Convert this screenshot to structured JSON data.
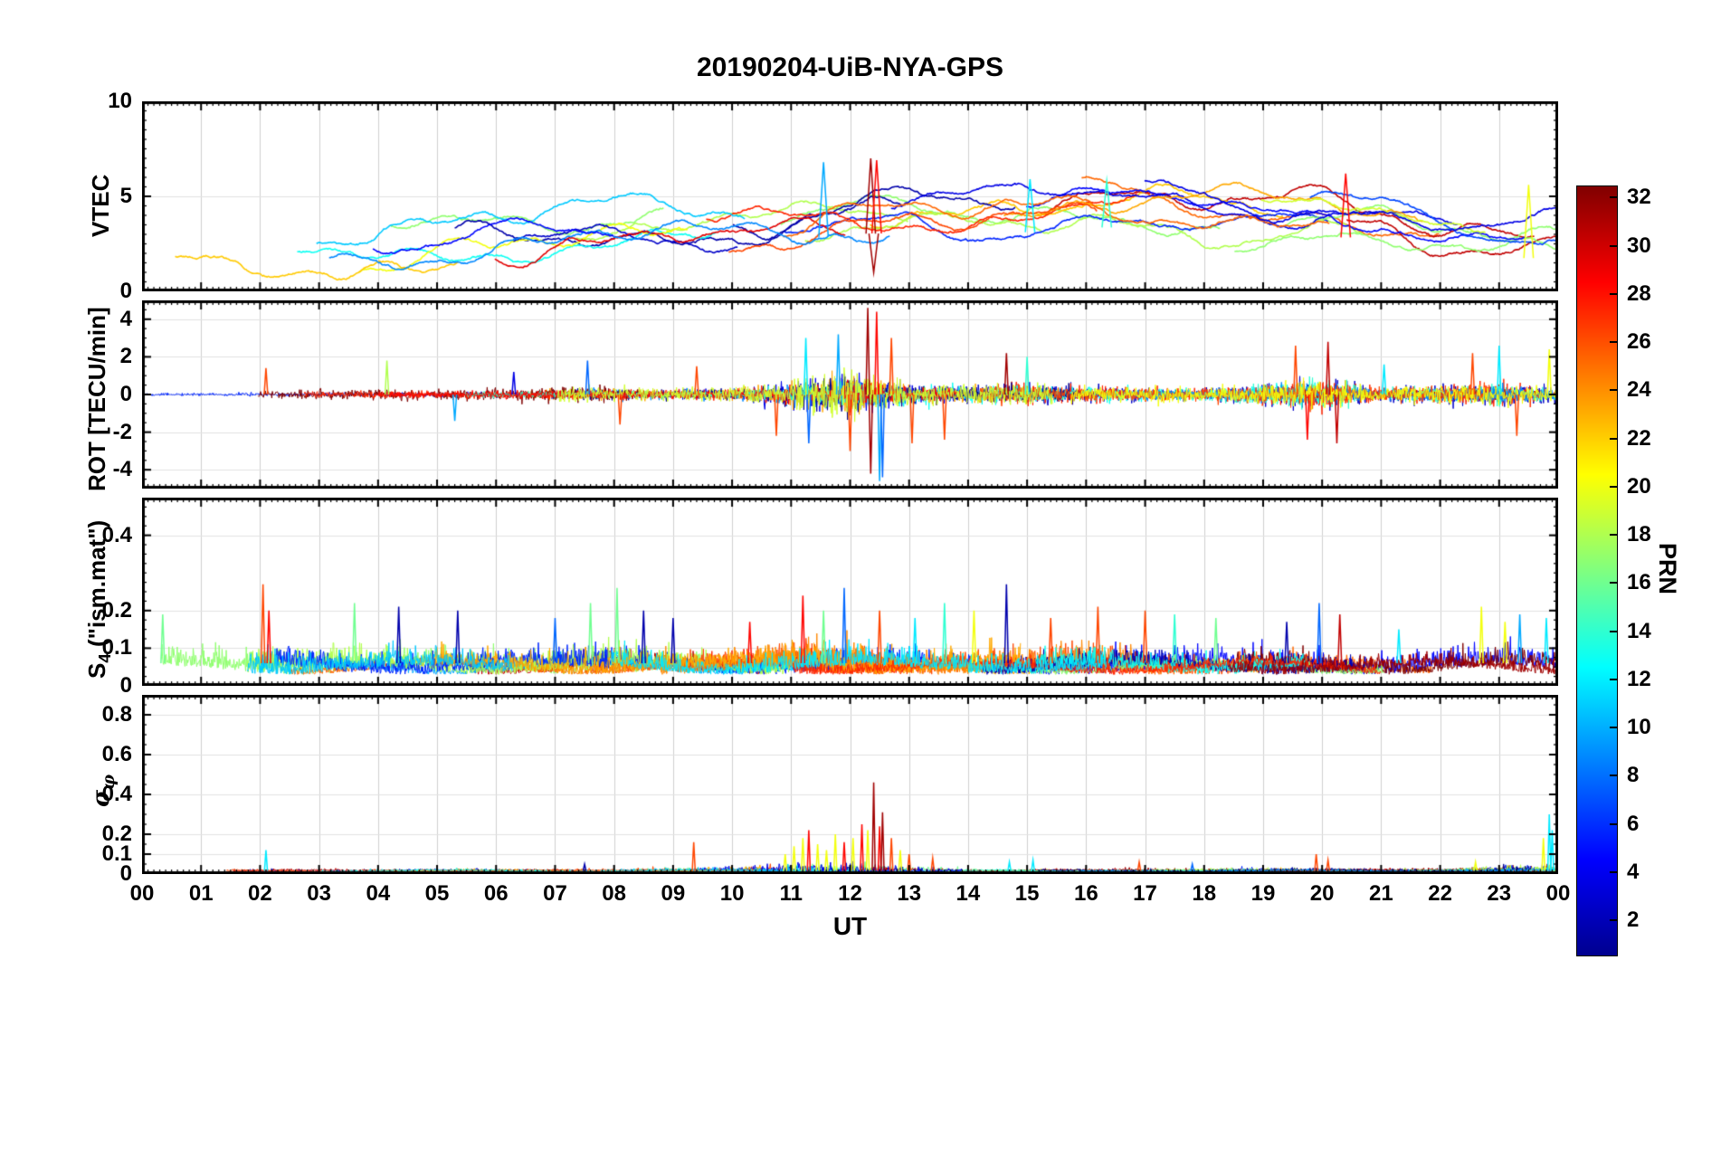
{
  "title": "20190204-UiB-NYA-GPS",
  "xlabel": "UT",
  "x_ticks": [
    "00",
    "01",
    "02",
    "03",
    "04",
    "05",
    "06",
    "07",
    "08",
    "09",
    "10",
    "11",
    "12",
    "13",
    "14",
    "15",
    "16",
    "17",
    "18",
    "19",
    "20",
    "21",
    "22",
    "23",
    "00"
  ],
  "colorbar": {
    "label": "PRN",
    "min": 1,
    "max": 32,
    "ticks": [
      2,
      4,
      6,
      8,
      10,
      12,
      14,
      16,
      18,
      20,
      22,
      24,
      26,
      28,
      30,
      32
    ],
    "colormap": "jet",
    "jet_stops": [
      [
        0,
        "#00008F"
      ],
      [
        0.125,
        "#0000FF"
      ],
      [
        0.375,
        "#00FFFF"
      ],
      [
        0.625,
        "#FFFF00"
      ],
      [
        0.875,
        "#FF0000"
      ],
      [
        1,
        "#800000"
      ]
    ]
  },
  "chart_data": {
    "type": "line",
    "x_range_hours": [
      0,
      24
    ],
    "x_axis_label": "UT",
    "grid": true,
    "legend": "colorbar PRN 1-32 (jet colormap)",
    "panels": [
      {
        "name": "VTEC",
        "kind": "smooth",
        "ylabel": "VTEC",
        "ylim": [
          0,
          10
        ],
        "yticks": [
          0,
          5,
          10
        ],
        "minor_tick": 0.5,
        "seed": 11,
        "n_series": 30,
        "spread": 1.0,
        "mean_envelope": [
          2.2,
          2.1,
          2.2,
          2.4,
          2.6,
          2.7,
          2.9,
          3.0,
          3.2,
          3.4,
          3.3,
          3.5,
          3.8,
          3.9,
          3.7,
          3.9,
          4.2,
          4.1,
          3.8,
          3.6,
          3.8,
          3.4,
          2.9,
          2.6,
          2.5
        ],
        "events": [
          {
            "t": 11.55,
            "v": 6.8,
            "prn": 10
          },
          {
            "t": 12.35,
            "v": 7.0,
            "prn": 31
          },
          {
            "t": 12.45,
            "v": 6.9,
            "prn": 28
          },
          {
            "t": 12.4,
            "v": 1.0,
            "prn": 31
          },
          {
            "t": 15.05,
            "v": 5.9,
            "prn": 12
          },
          {
            "t": 16.35,
            "v": 5.8,
            "prn": 14
          },
          {
            "t": 20.4,
            "v": 6.2,
            "prn": 28
          },
          {
            "t": 23.5,
            "v": 5.6,
            "prn": 20
          }
        ],
        "event_w": 0.08
      },
      {
        "name": "ROT",
        "kind": "noise",
        "signed": true,
        "ylabel": "ROT [TECU/min]",
        "ylim": [
          -5,
          5
        ],
        "yticks": [
          -4,
          -2,
          0,
          2,
          4
        ],
        "minor_tick": 0.5,
        "seed": 23,
        "n_series": 22,
        "noise": 0.13,
        "f_base": 0.5,
        "f_rand": 1.1,
        "amplitude_envelope": [
          0.7,
          0.7,
          0.8,
          0.8,
          1.0,
          1.0,
          1.1,
          1.3,
          1.3,
          1.1,
          1.5,
          2.5,
          5.0,
          2.0,
          1.8,
          2.0,
          1.6,
          1.4,
          1.2,
          2.0,
          2.6,
          1.4,
          1.8,
          2.2,
          1.5
        ],
        "events": [
          {
            "t": 2.1,
            "v": 1.4,
            "prn": 26
          },
          {
            "t": 4.15,
            "v": 1.8,
            "prn": 18
          },
          {
            "t": 5.3,
            "v": -1.4,
            "prn": 10
          },
          {
            "t": 6.3,
            "v": 1.2,
            "prn": 4
          },
          {
            "t": 7.55,
            "v": 1.8,
            "prn": 8
          },
          {
            "t": 8.1,
            "v": -1.6,
            "prn": 26
          },
          {
            "t": 9.4,
            "v": 1.5,
            "prn": 26
          },
          {
            "t": 10.75,
            "v": -2.2,
            "prn": 26
          },
          {
            "t": 11.25,
            "v": 3.0,
            "prn": 12
          },
          {
            "t": 11.3,
            "v": -2.6,
            "prn": 8
          },
          {
            "t": 11.8,
            "v": 3.2,
            "prn": 10
          },
          {
            "t": 12.0,
            "v": -3.0,
            "prn": 26
          },
          {
            "t": 12.3,
            "v": 4.6,
            "prn": 31
          },
          {
            "t": 12.35,
            "v": -4.2,
            "prn": 31
          },
          {
            "t": 12.45,
            "v": 4.4,
            "prn": 28
          },
          {
            "t": 12.5,
            "v": -4.6,
            "prn": 10
          },
          {
            "t": 12.55,
            "v": -4.4,
            "prn": 8
          },
          {
            "t": 12.7,
            "v": 3.0,
            "prn": 26
          },
          {
            "t": 13.05,
            "v": -2.6,
            "prn": 26
          },
          {
            "t": 13.6,
            "v": -2.4,
            "prn": 26
          },
          {
            "t": 14.65,
            "v": 2.2,
            "prn": 31
          },
          {
            "t": 15.0,
            "v": 2.0,
            "prn": 14
          },
          {
            "t": 19.55,
            "v": 2.6,
            "prn": 26
          },
          {
            "t": 19.75,
            "v": -2.4,
            "prn": 28
          },
          {
            "t": 20.1,
            "v": 2.8,
            "prn": 30
          },
          {
            "t": 20.25,
            "v": -2.6,
            "prn": 30
          },
          {
            "t": 21.05,
            "v": 1.6,
            "prn": 12
          },
          {
            "t": 22.55,
            "v": 2.2,
            "prn": 26
          },
          {
            "t": 23.0,
            "v": 2.6,
            "prn": 12
          },
          {
            "t": 23.3,
            "v": -2.2,
            "prn": 26
          },
          {
            "t": 23.85,
            "v": 2.4,
            "prn": 20
          }
        ],
        "event_w": 0.03
      },
      {
        "name": "S4",
        "kind": "noise",
        "signed": false,
        "ylabel_parts": {
          "prefix": "S",
          "sub": "4",
          "suffix": " (\"ism.mat\")"
        },
        "ylim": [
          0,
          0.5
        ],
        "yticks": [
          0,
          0.1,
          0.2,
          0.4
        ],
        "minor_tick": 0.025,
        "seed": 37,
        "n_series": 22,
        "base": 0.03,
        "noise": 0.02,
        "wiggle": 0.012,
        "f_base": 0.6,
        "f_rand": 0.9,
        "amplitude_envelope": [
          1.3,
          1.1,
          1.5,
          1.1,
          1.2,
          1.1,
          1.0,
          1.2,
          1.4,
          1.0,
          1.0,
          1.5,
          1.5,
          1.2,
          1.2,
          1.2,
          1.3,
          1.2,
          1.1,
          1.2,
          1.3,
          1.0,
          1.2,
          1.3,
          1.2
        ],
        "events": [
          {
            "t": 0.35,
            "v": 0.19,
            "prn": 16
          },
          {
            "t": 2.05,
            "v": 0.27,
            "prn": 26
          },
          {
            "t": 2.15,
            "v": 0.2,
            "prn": 28
          },
          {
            "t": 3.6,
            "v": 0.22,
            "prn": 16
          },
          {
            "t": 4.35,
            "v": 0.21,
            "prn": 2
          },
          {
            "t": 5.35,
            "v": 0.2,
            "prn": 2
          },
          {
            "t": 7.0,
            "v": 0.18,
            "prn": 8
          },
          {
            "t": 7.6,
            "v": 0.22,
            "prn": 16
          },
          {
            "t": 8.05,
            "v": 0.26,
            "prn": 16
          },
          {
            "t": 8.5,
            "v": 0.2,
            "prn": 2
          },
          {
            "t": 9.0,
            "v": 0.18,
            "prn": 2
          },
          {
            "t": 10.3,
            "v": 0.17,
            "prn": 28
          },
          {
            "t": 11.2,
            "v": 0.24,
            "prn": 28
          },
          {
            "t": 11.55,
            "v": 0.2,
            "prn": 16
          },
          {
            "t": 11.9,
            "v": 0.26,
            "prn": 8
          },
          {
            "t": 12.5,
            "v": 0.2,
            "prn": 26
          },
          {
            "t": 13.1,
            "v": 0.18,
            "prn": 12
          },
          {
            "t": 13.6,
            "v": 0.22,
            "prn": 14
          },
          {
            "t": 14.1,
            "v": 0.2,
            "prn": 20
          },
          {
            "t": 14.65,
            "v": 0.27,
            "prn": 2
          },
          {
            "t": 15.4,
            "v": 0.18,
            "prn": 26
          },
          {
            "t": 16.2,
            "v": 0.21,
            "prn": 26
          },
          {
            "t": 17.0,
            "v": 0.2,
            "prn": 26
          },
          {
            "t": 17.5,
            "v": 0.19,
            "prn": 14
          },
          {
            "t": 18.2,
            "v": 0.18,
            "prn": 16
          },
          {
            "t": 19.4,
            "v": 0.17,
            "prn": 2
          },
          {
            "t": 19.95,
            "v": 0.22,
            "prn": 8
          },
          {
            "t": 20.3,
            "v": 0.19,
            "prn": 30
          },
          {
            "t": 21.3,
            "v": 0.15,
            "prn": 12
          },
          {
            "t": 22.7,
            "v": 0.21,
            "prn": 20
          },
          {
            "t": 23.1,
            "v": 0.17,
            "prn": 20
          },
          {
            "t": 23.35,
            "v": 0.19,
            "prn": 10
          },
          {
            "t": 23.8,
            "v": 0.18,
            "prn": 12
          }
        ],
        "event_w": 0.03
      },
      {
        "name": "sigma-phi",
        "kind": "noise",
        "signed": false,
        "ylabel_parts": {
          "prefix": "σ",
          "sub": "φ"
        },
        "ylim": [
          0,
          0.9
        ],
        "yticks": [
          0,
          0.1,
          0.2,
          0.4,
          0.6,
          0.8
        ],
        "minor_tick": 0.05,
        "seed": 51,
        "n_series": 22,
        "base": 0.008,
        "noise": 0.006,
        "wiggle": 0.004,
        "f_base": 0.6,
        "f_rand": 0.9,
        "amplitude_envelope": [
          1,
          1,
          1.3,
          1,
          1,
          1,
          1,
          1,
          1,
          1.5,
          1.5,
          3,
          4,
          2,
          1.2,
          1,
          1,
          1,
          1,
          1.3,
          1.3,
          1,
          1,
          2,
          2.5
        ],
        "events": [
          {
            "t": 2.1,
            "v": 0.12,
            "prn": 12
          },
          {
            "t": 7.5,
            "v": 0.05,
            "prn": 2
          },
          {
            "t": 9.35,
            "v": 0.16,
            "prn": 26
          },
          {
            "t": 10.9,
            "v": 0.1,
            "prn": 20
          },
          {
            "t": 11.05,
            "v": 0.14,
            "prn": 20
          },
          {
            "t": 11.2,
            "v": 0.18,
            "prn": 20
          },
          {
            "t": 11.3,
            "v": 0.22,
            "prn": 28
          },
          {
            "t": 11.45,
            "v": 0.15,
            "prn": 20
          },
          {
            "t": 11.6,
            "v": 0.12,
            "prn": 20
          },
          {
            "t": 11.75,
            "v": 0.2,
            "prn": 20
          },
          {
            "t": 11.9,
            "v": 0.16,
            "prn": 28
          },
          {
            "t": 12.05,
            "v": 0.18,
            "prn": 20
          },
          {
            "t": 12.2,
            "v": 0.25,
            "prn": 28
          },
          {
            "t": 12.3,
            "v": 0.22,
            "prn": 20
          },
          {
            "t": 12.4,
            "v": 0.46,
            "prn": 31
          },
          {
            "t": 12.5,
            "v": 0.24,
            "prn": 28
          },
          {
            "t": 12.55,
            "v": 0.31,
            "prn": 31
          },
          {
            "t": 12.7,
            "v": 0.18,
            "prn": 26
          },
          {
            "t": 12.85,
            "v": 0.12,
            "prn": 20
          },
          {
            "t": 13.0,
            "v": 0.1,
            "prn": 26
          },
          {
            "t": 13.4,
            "v": 0.08,
            "prn": 26
          },
          {
            "t": 14.7,
            "v": 0.06,
            "prn": 12
          },
          {
            "t": 15.1,
            "v": 0.07,
            "prn": 12
          },
          {
            "t": 16.9,
            "v": 0.06,
            "prn": 26
          },
          {
            "t": 17.8,
            "v": 0.05,
            "prn": 8
          },
          {
            "t": 19.9,
            "v": 0.1,
            "prn": 26
          },
          {
            "t": 20.1,
            "v": 0.07,
            "prn": 26
          },
          {
            "t": 22.6,
            "v": 0.06,
            "prn": 20
          },
          {
            "t": 23.75,
            "v": 0.18,
            "prn": 20
          },
          {
            "t": 23.85,
            "v": 0.3,
            "prn": 12
          },
          {
            "t": 23.9,
            "v": 0.22,
            "prn": 12
          }
        ],
        "event_w": 0.025
      }
    ]
  }
}
